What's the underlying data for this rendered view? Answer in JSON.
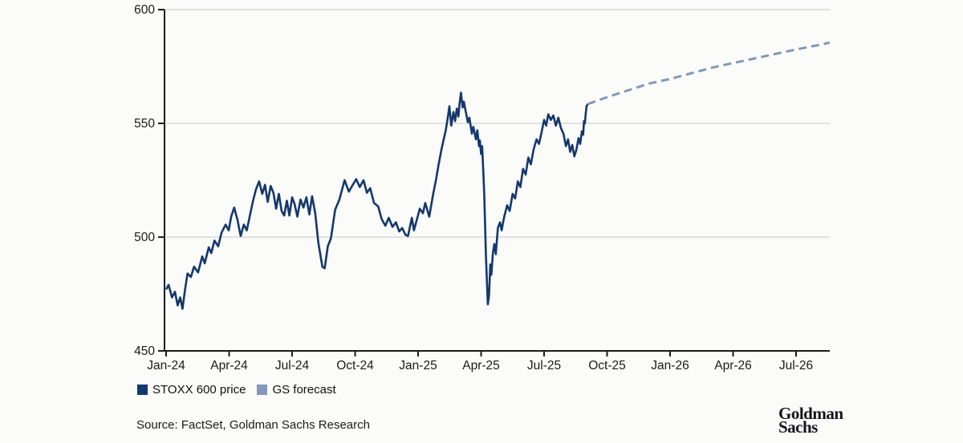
{
  "page": {
    "background": "#FBFBF9"
  },
  "legend": {
    "items": [
      {
        "label": "STOXX 600 price",
        "color": "#14386C"
      },
      {
        "label": "GS forecast",
        "color": "#8398B9"
      }
    ]
  },
  "source": {
    "text": "Source: FactSet, Goldman Sachs Research"
  },
  "logo": {
    "line1": "Goldman",
    "line2": "Sachs"
  },
  "colors": {
    "historical_line": "#14386C",
    "forecast_line": "#8398B9",
    "grid": "#D9D9D6",
    "axis": "#1A1A1A",
    "tick_text": "#1B1B1B"
  },
  "chart_data": {
    "type": "line",
    "title": "",
    "xlabel": "",
    "ylabel": "",
    "x_unit": "months since Jan-2024 (decimal)",
    "ylim": [
      450,
      600
    ],
    "y_ticks": [
      450,
      500,
      550,
      600
    ],
    "grid": "horizontal",
    "legend_position": "bottom-left",
    "x_ticks": [
      {
        "t": 0,
        "label": "Jan-24"
      },
      {
        "t": 3,
        "label": "Apr-24"
      },
      {
        "t": 6,
        "label": "Jul-24"
      },
      {
        "t": 9,
        "label": "Oct-24"
      },
      {
        "t": 12,
        "label": "Jan-25"
      },
      {
        "t": 15,
        "label": "Apr-25"
      },
      {
        "t": 18,
        "label": "Jul-25"
      },
      {
        "t": 21,
        "label": "Oct-25"
      },
      {
        "t": 24,
        "label": "Jan-26"
      },
      {
        "t": 27,
        "label": "Apr-26"
      },
      {
        "t": 30,
        "label": "Jul-26"
      }
    ],
    "series": [
      {
        "name": "STOXX 600 price",
        "style": "solid",
        "color": "#14386C",
        "points": [
          [
            0.0,
            477
          ],
          [
            0.12,
            479
          ],
          [
            0.28,
            473.5
          ],
          [
            0.42,
            476
          ],
          [
            0.55,
            470
          ],
          [
            0.67,
            473.5
          ],
          [
            0.78,
            468.5
          ],
          [
            0.9,
            477
          ],
          [
            1.02,
            484
          ],
          [
            1.18,
            482.5
          ],
          [
            1.33,
            487
          ],
          [
            1.52,
            484.5
          ],
          [
            1.72,
            491.5
          ],
          [
            1.84,
            488.5
          ],
          [
            2.03,
            495.5
          ],
          [
            2.15,
            493
          ],
          [
            2.3,
            498.5
          ],
          [
            2.48,
            496
          ],
          [
            2.64,
            502
          ],
          [
            2.83,
            505.5
          ],
          [
            2.98,
            503
          ],
          [
            3.1,
            509
          ],
          [
            3.24,
            513
          ],
          [
            3.4,
            507.5
          ],
          [
            3.55,
            500.5
          ],
          [
            3.7,
            505.5
          ],
          [
            3.84,
            503
          ],
          [
            4.0,
            510
          ],
          [
            4.14,
            516
          ],
          [
            4.28,
            521
          ],
          [
            4.43,
            524.5
          ],
          [
            4.58,
            519
          ],
          [
            4.71,
            523
          ],
          [
            4.84,
            515.5
          ],
          [
            4.98,
            522.5
          ],
          [
            5.11,
            519.5
          ],
          [
            5.24,
            512.5
          ],
          [
            5.37,
            519
          ],
          [
            5.5,
            511.5
          ],
          [
            5.62,
            509.5
          ],
          [
            5.75,
            516
          ],
          [
            5.87,
            509.5
          ],
          [
            6.0,
            517.5
          ],
          [
            6.12,
            514.5
          ],
          [
            6.25,
            509
          ],
          [
            6.4,
            516.5
          ],
          [
            6.54,
            513
          ],
          [
            6.68,
            517.5
          ],
          [
            6.82,
            510
          ],
          [
            6.95,
            518
          ],
          [
            7.1,
            510.5
          ],
          [
            7.25,
            497.5
          ],
          [
            7.44,
            487
          ],
          [
            7.55,
            486.3
          ],
          [
            7.7,
            496
          ],
          [
            7.85,
            499.5
          ],
          [
            8.05,
            512
          ],
          [
            8.25,
            516.5
          ],
          [
            8.5,
            525
          ],
          [
            8.7,
            520
          ],
          [
            8.86,
            522.5
          ],
          [
            9.05,
            525.5
          ],
          [
            9.22,
            522
          ],
          [
            9.4,
            525
          ],
          [
            9.56,
            519.5
          ],
          [
            9.72,
            521.5
          ],
          [
            9.9,
            515
          ],
          [
            10.1,
            513.5
          ],
          [
            10.26,
            508
          ],
          [
            10.44,
            505
          ],
          [
            10.6,
            508.5
          ],
          [
            10.78,
            504.5
          ],
          [
            10.94,
            506.5
          ],
          [
            11.1,
            502.5
          ],
          [
            11.24,
            504
          ],
          [
            11.4,
            501
          ],
          [
            11.52,
            500.5
          ],
          [
            11.7,
            508.5
          ],
          [
            11.8,
            503
          ],
          [
            11.95,
            508
          ],
          [
            12.08,
            512.5
          ],
          [
            12.23,
            510.5
          ],
          [
            12.34,
            515
          ],
          [
            12.53,
            509
          ],
          [
            12.72,
            519
          ],
          [
            12.85,
            525
          ],
          [
            12.98,
            532
          ],
          [
            13.1,
            538
          ],
          [
            13.22,
            543
          ],
          [
            13.32,
            547
          ],
          [
            13.42,
            553
          ],
          [
            13.49,
            557.5
          ],
          [
            13.58,
            549
          ],
          [
            13.68,
            555
          ],
          [
            13.76,
            551
          ],
          [
            13.84,
            556.5
          ],
          [
            13.92,
            553
          ],
          [
            13.98,
            559
          ],
          [
            14.04,
            563.5
          ],
          [
            14.12,
            557
          ],
          [
            14.18,
            559.5
          ],
          [
            14.25,
            556
          ],
          [
            14.37,
            550.5
          ],
          [
            14.44,
            552.5
          ],
          [
            14.56,
            545.5
          ],
          [
            14.63,
            548.5
          ],
          [
            14.75,
            543
          ],
          [
            14.82,
            547
          ],
          [
            14.9,
            540
          ],
          [
            14.94,
            542.5
          ],
          [
            15.0,
            536.5
          ],
          [
            15.05,
            540
          ],
          [
            15.1,
            530
          ],
          [
            15.15,
            519
          ],
          [
            15.19,
            505
          ],
          [
            15.23,
            492
          ],
          [
            15.28,
            480
          ],
          [
            15.32,
            470.5
          ],
          [
            15.38,
            474.5
          ],
          [
            15.44,
            488
          ],
          [
            15.49,
            483.5
          ],
          [
            15.56,
            493
          ],
          [
            15.63,
            497
          ],
          [
            15.7,
            492.5
          ],
          [
            15.8,
            504
          ],
          [
            15.9,
            506.5
          ],
          [
            15.98,
            503
          ],
          [
            16.1,
            509
          ],
          [
            16.24,
            514
          ],
          [
            16.36,
            511.5
          ],
          [
            16.5,
            519
          ],
          [
            16.62,
            517
          ],
          [
            16.75,
            524.5
          ],
          [
            16.87,
            522
          ],
          [
            17.0,
            530
          ],
          [
            17.12,
            527.5
          ],
          [
            17.25,
            535
          ],
          [
            17.37,
            532
          ],
          [
            17.5,
            538.5
          ],
          [
            17.64,
            543
          ],
          [
            17.76,
            541
          ],
          [
            17.9,
            547
          ],
          [
            18.0,
            551.5
          ],
          [
            18.1,
            549
          ],
          [
            18.2,
            554
          ],
          [
            18.32,
            551.5
          ],
          [
            18.44,
            553.5
          ],
          [
            18.56,
            549
          ],
          [
            18.68,
            552.5
          ],
          [
            18.8,
            548
          ],
          [
            18.92,
            545.5
          ],
          [
            19.04,
            540
          ],
          [
            19.14,
            543
          ],
          [
            19.24,
            537.5
          ],
          [
            19.34,
            540.5
          ],
          [
            19.44,
            535.5
          ],
          [
            19.54,
            538.5
          ],
          [
            19.64,
            543.5
          ],
          [
            19.72,
            541
          ],
          [
            19.8,
            546.5
          ],
          [
            19.86,
            545
          ],
          [
            19.9,
            551
          ],
          [
            19.94,
            550
          ],
          [
            19.98,
            554
          ],
          [
            20.02,
            557.5
          ],
          [
            20.08,
            558.5
          ]
        ]
      },
      {
        "name": "GS forecast",
        "style": "dashed",
        "color": "#8398B9",
        "points": [
          [
            20.08,
            558.5
          ],
          [
            21.0,
            561.5
          ],
          [
            22.0,
            564.5
          ],
          [
            23.0,
            567.5
          ],
          [
            24.0,
            569.5
          ],
          [
            25.0,
            572
          ],
          [
            26.0,
            574.5
          ],
          [
            27.0,
            576.5
          ],
          [
            28.0,
            578.5
          ],
          [
            29.0,
            580.5
          ],
          [
            30.0,
            582.5
          ],
          [
            31.0,
            584.3
          ],
          [
            31.6,
            585.5
          ]
        ]
      }
    ]
  }
}
